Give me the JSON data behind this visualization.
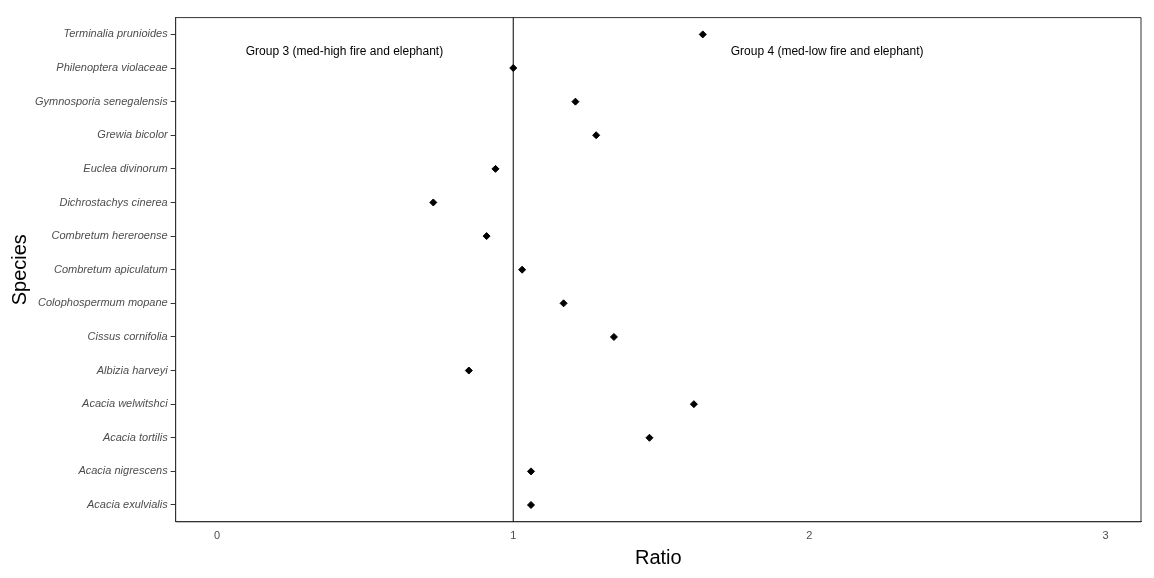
{
  "chart_data": {
    "type": "scatter",
    "orientation": "horizontal",
    "xlabel": "Ratio",
    "ylabel": "Species",
    "categories": [
      "Terminalia prunioides",
      "Philenoptera violaceae",
      "Gymnosporia senegalensis",
      "Grewia bicolor",
      "Euclea divinorum",
      "Dichrostachys cinerea",
      "Combretum hereroense",
      "Combretum apiculatum",
      "Colophospermum mopane",
      "Cissus cornifolia",
      "Albizia harveyi",
      "Acacia welwitshci",
      "Acacia tortilis",
      "Acacia nigrescens",
      "Acacia exulvialis"
    ],
    "values": [
      1.64,
      1.0,
      1.21,
      1.28,
      0.94,
      0.73,
      0.91,
      1.03,
      1.17,
      1.34,
      0.85,
      1.61,
      1.46,
      1.06,
      1.06
    ],
    "color": "#000000",
    "marker": "diamond",
    "xlim": [
      -0.14,
      3.12
    ],
    "xticks": [
      0,
      1,
      2,
      3
    ],
    "grid": false,
    "legend": false,
    "ref_lines": [
      {
        "axis": "x",
        "value": 1,
        "color": "#000000"
      }
    ],
    "annotations": [
      "Group 3 (med-high fire and elephant)",
      "Group 4 (med-low fire and elephant)"
    ]
  }
}
